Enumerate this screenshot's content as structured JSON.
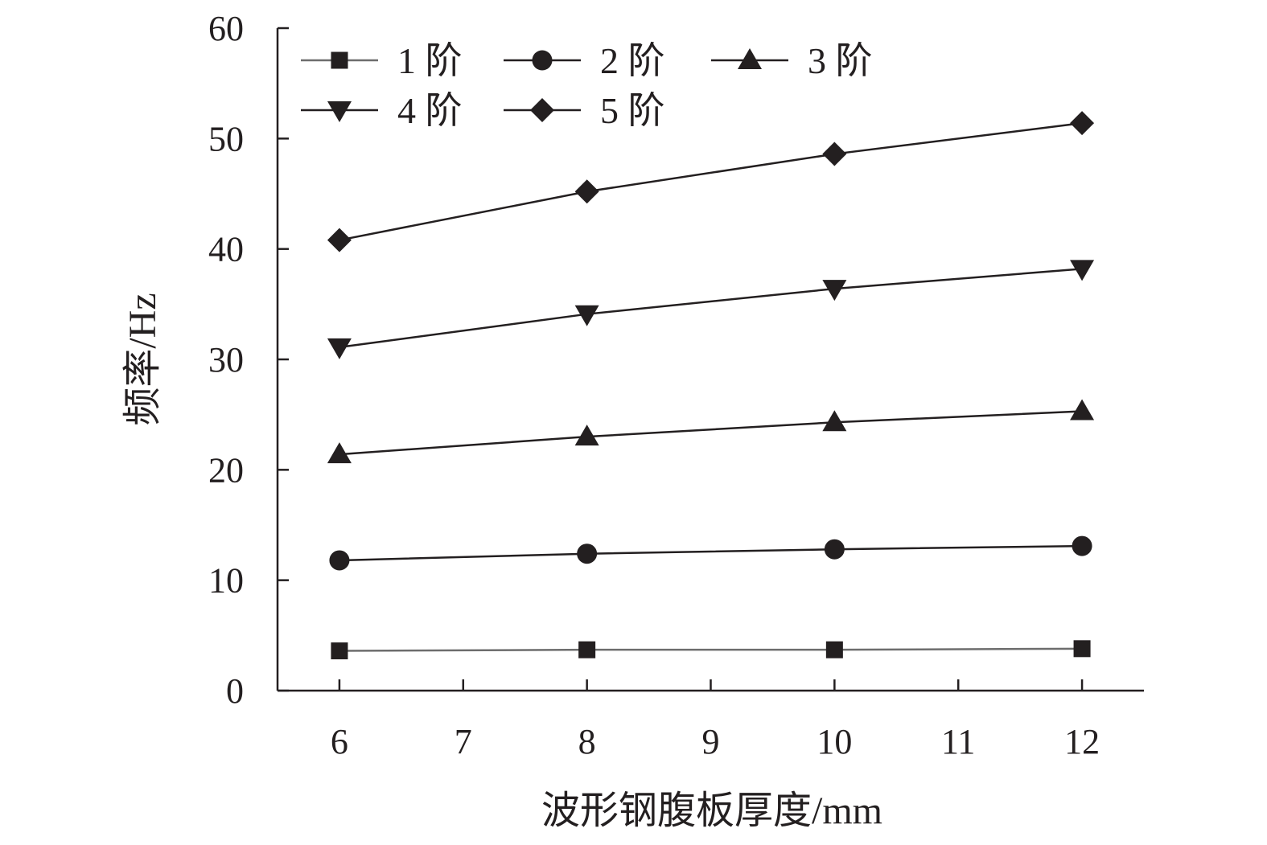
{
  "chart_data": {
    "type": "line",
    "title": "",
    "xlabel": "波形钢腹板厚度/mm",
    "ylabel": "频率/Hz",
    "xlim": [
      5.5,
      12.5
    ],
    "ylim": [
      0,
      60
    ],
    "xticks": [
      6,
      7,
      8,
      9,
      10,
      11,
      12
    ],
    "yticks": [
      0,
      10,
      20,
      30,
      40,
      50,
      60
    ],
    "grid": false,
    "legend_position": "top-left",
    "x": [
      6,
      8,
      10,
      12
    ],
    "series": [
      {
        "name": "1 阶",
        "marker": "square",
        "color": "#231f20",
        "line_color": "#6d6d6d",
        "values": [
          3.6,
          3.7,
          3.7,
          3.8
        ]
      },
      {
        "name": "2 阶",
        "marker": "circle",
        "color": "#231f20",
        "line_color": "#231f20",
        "values": [
          11.8,
          12.4,
          12.8,
          13.1
        ]
      },
      {
        "name": "3 阶",
        "marker": "triangle-up",
        "color": "#231f20",
        "line_color": "#231f20",
        "values": [
          21.4,
          23.0,
          24.3,
          25.3
        ]
      },
      {
        "name": "4 阶",
        "marker": "triangle-down",
        "color": "#231f20",
        "line_color": "#231f20",
        "values": [
          31.1,
          34.1,
          36.4,
          38.2
        ]
      },
      {
        "name": "5 阶",
        "marker": "diamond",
        "color": "#231f20",
        "line_color": "#231f20",
        "values": [
          40.8,
          45.2,
          48.6,
          51.4
        ]
      }
    ]
  }
}
